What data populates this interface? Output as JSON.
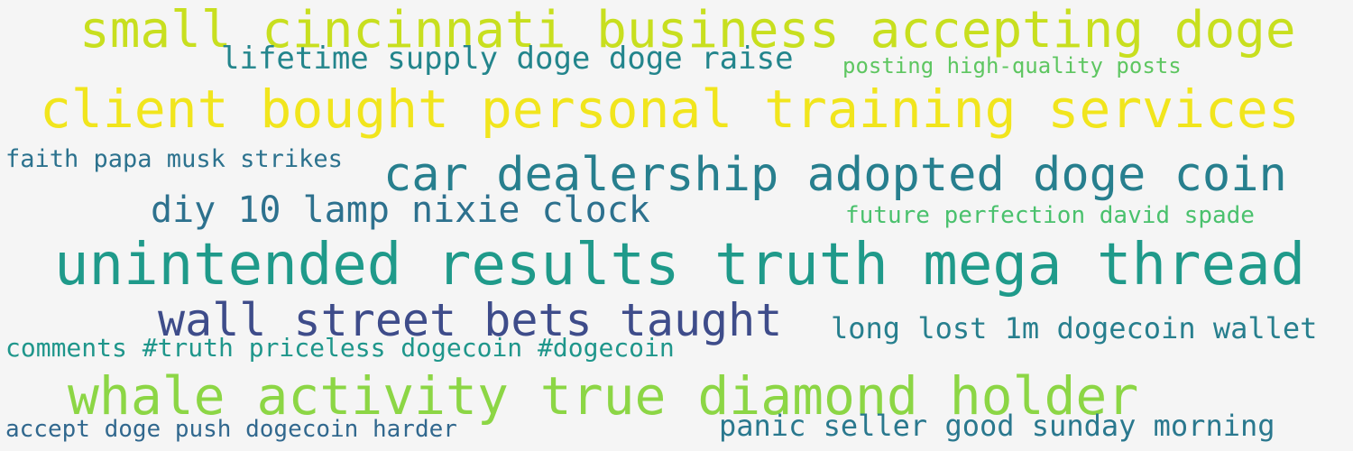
{
  "phrases": [
    {
      "text": "small cincinnati business accepting doge",
      "color": "#c8df1f"
    },
    {
      "text": "lifetime supply doge doge raise",
      "color": "#23858c"
    },
    {
      "text": "posting high-quality posts",
      "color": "#5ec661"
    },
    {
      "text": "client bought personal training services",
      "color": "#f1e51d"
    },
    {
      "text": "faith papa musk strikes",
      "color": "#2c728e"
    },
    {
      "text": "car dealership adopted doge coin",
      "color": "#277f8e"
    },
    {
      "text": "diy 10 lamp nixie clock",
      "color": "#2d718e"
    },
    {
      "text": "future perfection david spade",
      "color": "#4ac16d"
    },
    {
      "text": "unintended results truth mega thread",
      "color": "#1f9a8a"
    },
    {
      "text": "wall street bets taught",
      "color": "#3e4c8a"
    },
    {
      "text": "long lost 1m dogecoin wallet",
      "color": "#277f8e"
    },
    {
      "text": "comments #truth priceless dogecoin #dogecoin",
      "color": "#1f968b"
    },
    {
      "text": "whale activity true diamond  holder",
      "color": "#8cd645"
    },
    {
      "text": "accept doge push dogecoin harder",
      "color": "#31688e"
    },
    {
      "text": "panic seller good sunday morning",
      "color": "#2a788e"
    }
  ]
}
